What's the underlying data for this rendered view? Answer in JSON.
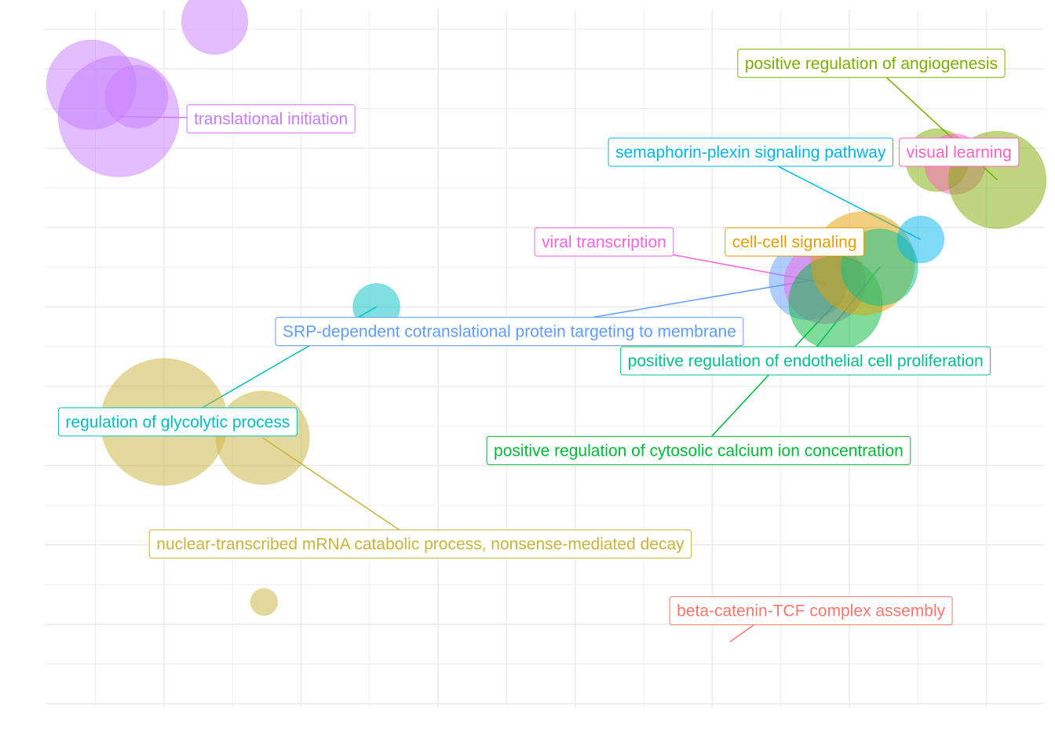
{
  "chart_data": {
    "type": "scatter",
    "title": "",
    "xlabel": "",
    "ylabel": "",
    "xlim": [
      -0.87,
      6.42
    ],
    "ylim": [
      -5.05,
      3.75
    ],
    "grid": true,
    "legend": "none",
    "points": [
      {
        "x": -0.53,
        "y": 2.8,
        "size": 0.55,
        "color": "#C77CFF"
      },
      {
        "x": -0.33,
        "y": 2.4,
        "size": 1.0,
        "color": "#C77CFF"
      },
      {
        "x": -0.2,
        "y": 2.65,
        "size": 0.27,
        "color": "#C77CFF"
      },
      {
        "x": 0.37,
        "y": 3.6,
        "size": 0.3,
        "color": "#C77CFF"
      },
      {
        "x": 4.7,
        "y": 0.33,
        "size": 0.42,
        "color": "#619CFF"
      },
      {
        "x": 4.82,
        "y": 0.3,
        "size": 0.45,
        "color": "#F564E3"
      },
      {
        "x": 4.9,
        "y": 0.05,
        "size": 0.6,
        "color": "#00BA38"
      },
      {
        "x": 5.1,
        "y": 0.55,
        "size": 0.73,
        "color": "#E69F00"
      },
      {
        "x": 5.22,
        "y": 0.5,
        "size": 0.4,
        "color": "#00C08B"
      },
      {
        "x": 5.52,
        "y": 0.85,
        "size": 0.15,
        "color": "#00B6EB"
      },
      {
        "x": 5.64,
        "y": 1.85,
        "size": 0.27,
        "color": "#7CAE00"
      },
      {
        "x": 5.77,
        "y": 1.8,
        "size": 0.25,
        "color": "#FF61C3"
      },
      {
        "x": 6.08,
        "y": 1.6,
        "size": 0.65,
        "color": "#7CAE00"
      },
      {
        "x": 1.55,
        "y": 0.0,
        "size": 0.15,
        "color": "#00BFC4"
      },
      {
        "x": 0.0,
        "y": -1.45,
        "size": 1.1,
        "color": "#C9B43C"
      },
      {
        "x": 0.72,
        "y": -1.65,
        "size": 0.6,
        "color": "#C9B43C"
      },
      {
        "x": 0.73,
        "y": -3.72,
        "size": 0.05,
        "color": "#C9B43C"
      }
    ],
    "labels": [
      {
        "text": "translational initiation",
        "color": "#C77CFF",
        "point_index": 1,
        "lx": 0.78,
        "ly": 2.37
      },
      {
        "text": "positive regulation of angiogenesis",
        "color": "#7CAE00",
        "point_index": 12,
        "lx": 5.16,
        "ly": 3.07
      },
      {
        "text": "semaphorin-plexin signaling pathway",
        "color": "#00B6EB",
        "point_index": 9,
        "lx": 4.28,
        "ly": 1.95
      },
      {
        "text": "visual learning",
        "color": "#FF61C3",
        "point_index": 11,
        "lx": 5.8,
        "ly": 1.95
      },
      {
        "text": "viral transcription",
        "color": "#F564E3",
        "point_index": 5,
        "lx": 3.21,
        "ly": 0.82
      },
      {
        "text": "cell-cell signaling",
        "color": "#E69F00",
        "point_index": 7,
        "lx": 4.6,
        "ly": 0.82
      },
      {
        "text": "SRP-dependent cotranslational protein targeting to membrane",
        "color": "#619CFF",
        "point_index": 4,
        "lx": 2.52,
        "ly": -0.31
      },
      {
        "text": "positive regulation of endothelial cell proliferation",
        "color": "#00C08B",
        "point_index": 8,
        "lx": 4.68,
        "ly": -0.68
      },
      {
        "text": "regulation of glycolytic process",
        "color": "#00BFC4",
        "point_index": 13,
        "lx": 0.1,
        "ly": -1.45
      },
      {
        "text": "positive regulation of cytosolic calcium ion concentration",
        "color": "#00BA38",
        "point_index": 6,
        "lx": 3.9,
        "ly": -1.81
      },
      {
        "text": "nuclear-transcribed mRNA catabolic process, nonsense-mediated decay",
        "color": "#C9B43C",
        "point_index": 15,
        "lx": 1.87,
        "ly": -2.99
      },
      {
        "text": "beta-catenin-TCF complex assembly",
        "color": "#F8766D",
        "point_index": null,
        "lx": 4.72,
        "ly": -3.83
      }
    ],
    "extra_segments": [
      {
        "color": "#F8766D",
        "x1": 4.45,
        "y1": -3.83,
        "x2": 4.13,
        "y2": -4.22
      }
    ]
  }
}
